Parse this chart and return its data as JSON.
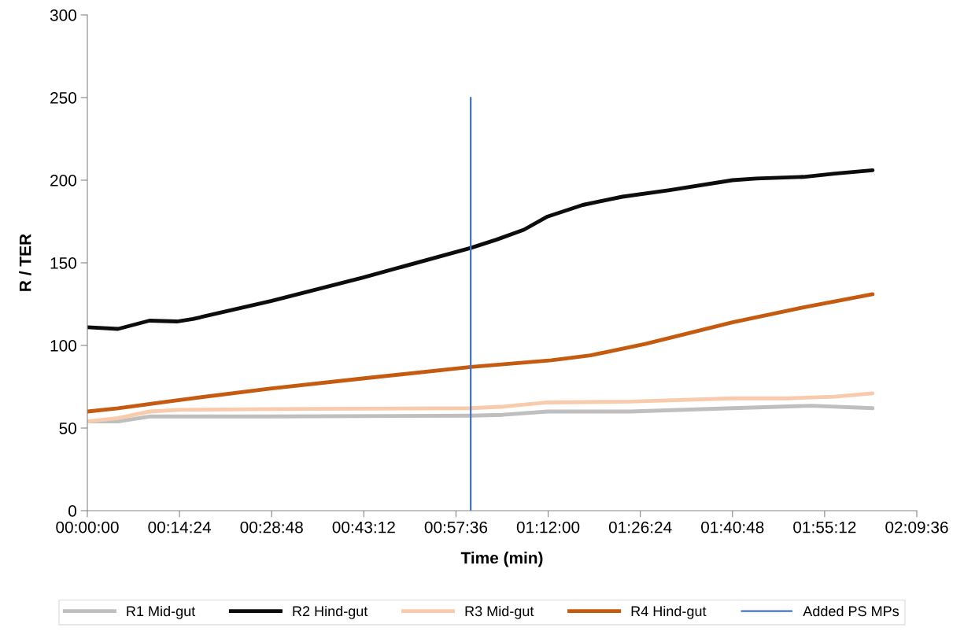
{
  "chart_data": {
    "type": "line",
    "xlabel": "Time (min)",
    "ylabel": "R / TER",
    "xlim": [
      0,
      129.6
    ],
    "xticks": [
      {
        "value": 0,
        "label": "00:00:00"
      },
      {
        "value": 14.4,
        "label": "00:14:24"
      },
      {
        "value": 28.8,
        "label": "00:28:48"
      },
      {
        "value": 43.2,
        "label": "00:43:12"
      },
      {
        "value": 57.6,
        "label": "00:57:36"
      },
      {
        "value": 72,
        "label": "01:12:00"
      },
      {
        "value": 86.4,
        "label": "01:26:24"
      },
      {
        "value": 100.8,
        "label": "01:40:48"
      },
      {
        "value": 115.2,
        "label": "01:55:12"
      },
      {
        "value": 129.6,
        "label": "02:09:36"
      }
    ],
    "ylim": [
      0,
      300
    ],
    "yticks": [
      0,
      50,
      100,
      150,
      200,
      250,
      300
    ],
    "grid": false,
    "legend": "bottom",
    "marker": "none",
    "line_style": "solid",
    "series": [
      {
        "name": "R1 Mid-gut",
        "color": "#bfbfbf",
        "x": [
          0,
          4.8,
          9.7,
          28.8,
          59.9,
          64.9,
          71.9,
          84.8,
          100.8,
          113.1,
          122.7
        ],
        "values": [
          54,
          54,
          57,
          57,
          57.5,
          58,
          60,
          60,
          62,
          63.5,
          62
        ]
      },
      {
        "name": "R2 Hind-gut",
        "color": "#0d0d0d",
        "x": [
          0,
          4.8,
          9.7,
          14.0,
          16.5,
          28.8,
          43.0,
          59.9,
          63.9,
          68.2,
          71.9,
          77.4,
          83.6,
          91.0,
          100.8,
          104.5,
          111.9,
          116.8,
          122.7
        ],
        "values": [
          111,
          110,
          115,
          114.5,
          116,
          127,
          141,
          159,
          164,
          170,
          178,
          185,
          190,
          194,
          200,
          201,
          202,
          204,
          206
        ]
      },
      {
        "name": "R3 Mid-gut",
        "color": "#f8cbad",
        "x": [
          0,
          4.8,
          9.7,
          14.4,
          28.8,
          59.9,
          65.1,
          71.9,
          84.8,
          100.8,
          109.4,
          116.8,
          122.7
        ],
        "values": [
          54,
          56,
          60,
          61,
          61.5,
          62,
          63,
          65.5,
          66,
          68,
          68,
          69,
          71
        ]
      },
      {
        "name": "R4 Hind-gut",
        "color": "#c55a11",
        "x": [
          0,
          4.8,
          14.4,
          28.8,
          43.0,
          59.9,
          72.5,
          78.6,
          87.3,
          100.8,
          111.9,
          122.7
        ],
        "values": [
          60,
          62,
          67,
          74,
          80,
          87,
          91,
          94,
          101,
          114,
          123,
          131
        ]
      },
      {
        "name": "Added PS MPs",
        "color": "#4472c4",
        "x": [
          59.9,
          59.9
        ],
        "values": [
          0,
          250
        ]
      }
    ]
  }
}
